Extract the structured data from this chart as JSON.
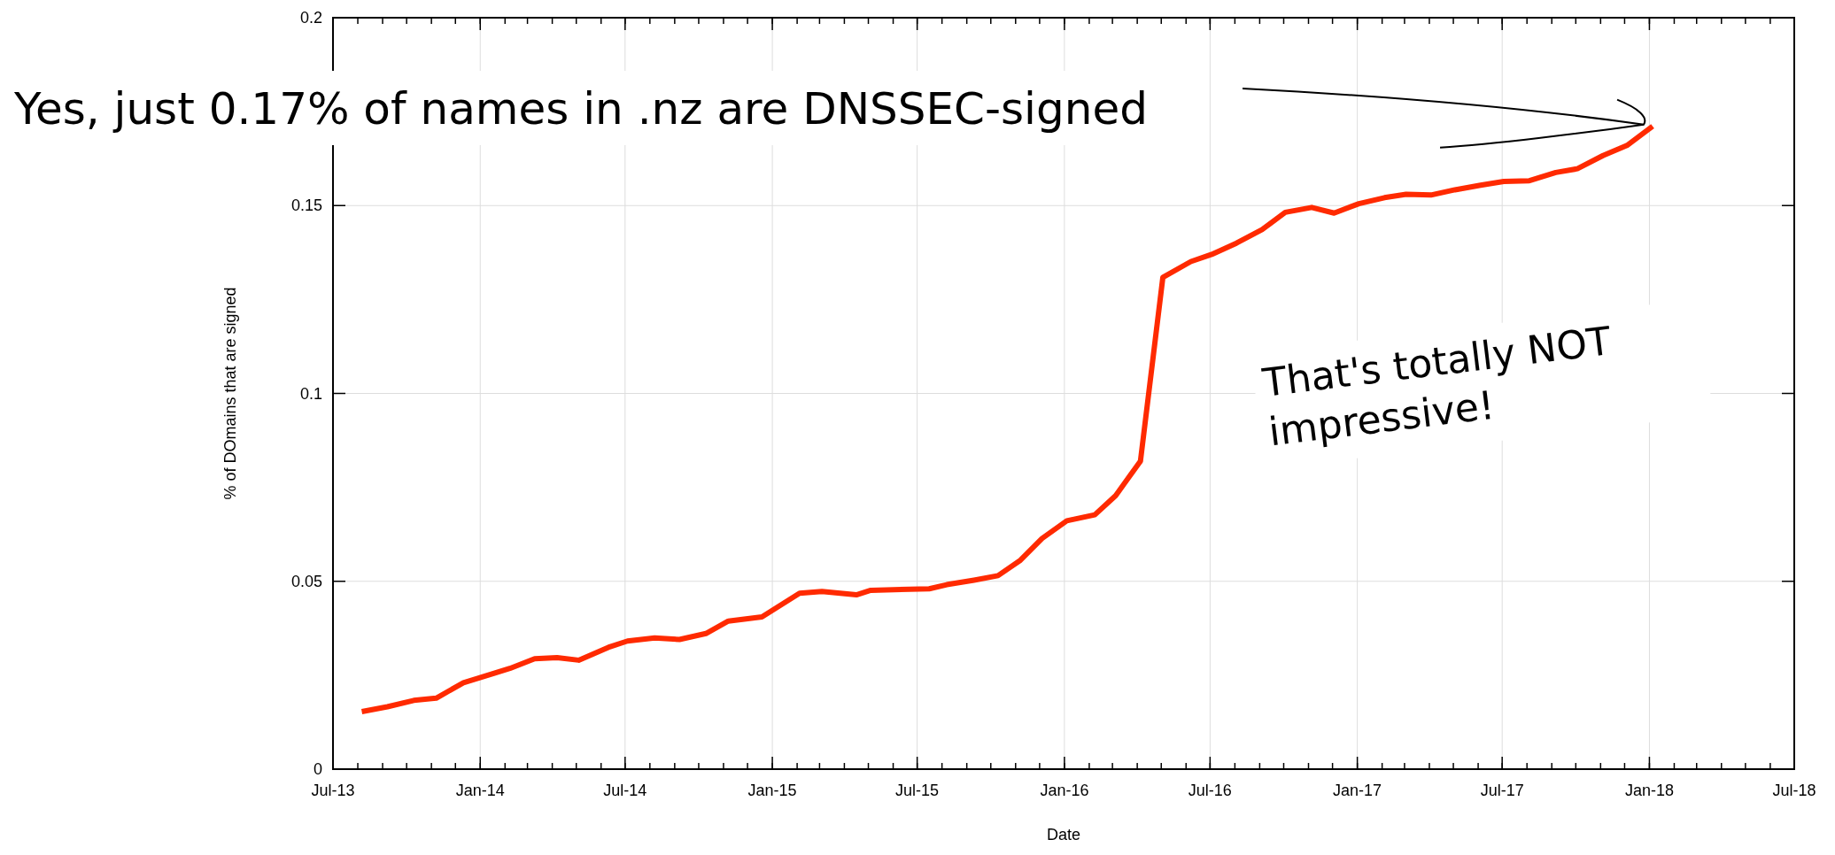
{
  "chart_data": {
    "type": "line",
    "xlabel": "Date",
    "ylabel": "% of DOmains that are signed",
    "x": [
      "2013-08-06",
      "2013-09-07",
      "2013-10-10",
      "2013-11-07",
      "2013-12-11",
      "2014-02-07",
      "2014-03-10",
      "2014-04-07",
      "2014-05-04",
      "2014-06-10",
      "2014-07-04",
      "2014-08-07",
      "2014-09-07",
      "2014-10-10",
      "2014-11-07",
      "2014-12-19",
      "2015-02-04",
      "2015-03-04",
      "2015-04-16",
      "2015-05-04",
      "2015-07-16",
      "2015-08-07",
      "2015-09-10",
      "2015-10-10",
      "2015-11-07",
      "2015-12-04",
      "2016-01-04",
      "2016-02-08",
      "2016-03-05",
      "2016-04-05",
      "2016-05-03",
      "2016-06-07",
      "2016-07-03",
      "2016-08-03",
      "2016-09-04",
      "2016-10-03",
      "2016-11-05",
      "2016-12-03",
      "2017-01-03",
      "2017-02-04",
      "2017-03-03",
      "2017-04-03",
      "2017-05-03",
      "2017-06-04",
      "2017-07-03",
      "2017-08-04",
      "2017-09-06",
      "2017-10-03",
      "2017-11-04",
      "2017-12-04",
      "2018-01-05"
    ],
    "series": [
      {
        "color": "#ff2a00",
        "values": [
          0.0153,
          0.0166,
          0.0183,
          0.0189,
          0.023,
          0.0268,
          0.0294,
          0.0297,
          0.029,
          0.0324,
          0.0341,
          0.0349,
          0.0345,
          0.0361,
          0.0394,
          0.0405,
          0.0468,
          0.0473,
          0.0464,
          0.0476,
          0.048,
          0.0491,
          0.0503,
          0.0515,
          0.0556,
          0.0614,
          0.0661,
          0.0677,
          0.0728,
          0.082,
          0.1309,
          0.1351,
          0.137,
          0.14,
          0.1436,
          0.1482,
          0.1495,
          0.148,
          0.1505,
          0.1521,
          0.153,
          0.1528,
          0.1542,
          0.1554,
          0.1564,
          0.1566,
          0.1588,
          0.1598,
          0.1633,
          0.166,
          0.1711
        ]
      }
    ],
    "xlim": [
      "2013-07",
      "2018-07"
    ],
    "xticks": [
      {
        "value": "2013-07",
        "label": "Jul-13"
      },
      {
        "value": "2014-01",
        "label": "Jan-14"
      },
      {
        "value": "2014-07",
        "label": "Jul-14"
      },
      {
        "value": "2015-01",
        "label": "Jan-15"
      },
      {
        "value": "2015-07",
        "label": "Jul-15"
      },
      {
        "value": "2016-01",
        "label": "Jan-16"
      },
      {
        "value": "2016-07",
        "label": "Jul-16"
      },
      {
        "value": "2017-01",
        "label": "Jan-17"
      },
      {
        "value": "2017-07",
        "label": "Jul-17"
      },
      {
        "value": "2018-01",
        "label": "Jan-18"
      },
      {
        "value": "2018-07",
        "label": "Jul-18"
      }
    ],
    "ylim": [
      0,
      0.2
    ],
    "yticks": [
      0,
      0.05,
      0.1,
      0.15,
      0.2
    ],
    "grid": true,
    "line_style": "solid",
    "annotations": [
      "Yes, just 0.17% of names in .nz are DNSSEC-signed",
      "That's totally NOT impressive!"
    ]
  }
}
